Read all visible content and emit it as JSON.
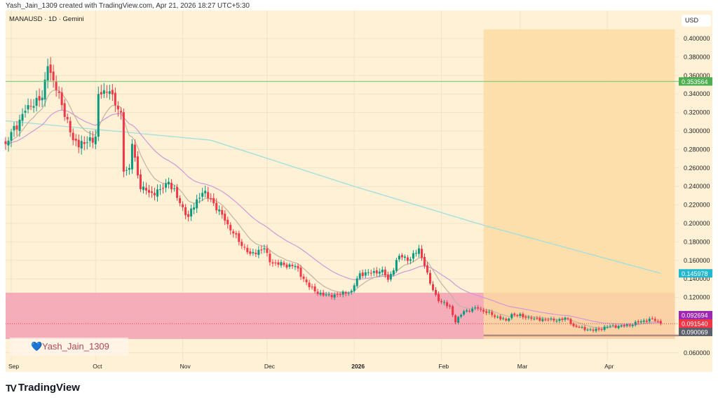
{
  "header": {
    "attribution": "Yash_Jain_1309 created with TradingView.com, Apr 21, 2026 18:27 UTC+5:30",
    "symbol": "MANAUSD · 1D · Gemini",
    "currency": "USD"
  },
  "watermark": {
    "text": "Yash_Jain_1309",
    "icon": "heart-icon"
  },
  "footer": {
    "brand": "TradingView",
    "icon": "tradingview-logo-icon"
  },
  "colors": {
    "background": "#fef1d6",
    "up": "#089981",
    "down": "#f23645",
    "orange_zone": "#fcdba0",
    "pink_zone": "#f4a9b8",
    "ma_long": "#9fdfe0",
    "ma_mid": "#cf98d8",
    "ma_short": "#c2b3a3",
    "hline": "#6cc46c"
  },
  "chart_data": {
    "type": "candlestick",
    "xlabel": "",
    "ylabel": "",
    "x_ticks": [
      "Sep",
      "Oct",
      "Nov",
      "Dec",
      "2026",
      "Feb",
      "Mar",
      "Apr"
    ],
    "x_tick_dates": [
      "2025-09-01",
      "2025-10-01",
      "2025-11-01",
      "2025-12-01",
      "2026-01-01",
      "2026-02-01",
      "2026-03-01",
      "2026-04-01"
    ],
    "y_ticks": [
      "0.400000",
      "0.380000",
      "0.360000",
      "0.340000",
      "0.320000",
      "0.300000",
      "0.280000",
      "0.260000",
      "0.240000",
      "0.220000",
      "0.200000",
      "0.180000",
      "0.160000",
      "0.140000",
      "0.120000",
      "0.060000"
    ],
    "ylim": [
      0.06,
      0.4
    ],
    "grid": true,
    "close_keypoints": [
      [
        "2025-08-30",
        0.286
      ],
      [
        "2025-09-07",
        0.328
      ],
      [
        "2025-09-12",
        0.336
      ],
      [
        "2025-09-14",
        0.37
      ],
      [
        "2025-09-19",
        0.328
      ],
      [
        "2025-09-23",
        0.29
      ],
      [
        "2025-09-27",
        0.286
      ],
      [
        "2025-10-01",
        0.294
      ],
      [
        "2025-10-02",
        0.34
      ],
      [
        "2025-10-06",
        0.343
      ],
      [
        "2025-10-08",
        0.328
      ],
      [
        "2025-10-10",
        0.32
      ],
      [
        "2025-10-11",
        0.256
      ],
      [
        "2025-10-13",
        0.26
      ],
      [
        "2025-10-14",
        0.286
      ],
      [
        "2025-10-17",
        0.237
      ],
      [
        "2025-10-21",
        0.233
      ],
      [
        "2025-10-24",
        0.237
      ],
      [
        "2025-10-27",
        0.245
      ],
      [
        "2025-10-31",
        0.222
      ],
      [
        "2025-11-03",
        0.207
      ],
      [
        "2025-11-06",
        0.226
      ],
      [
        "2025-11-08",
        0.233
      ],
      [
        "2025-11-11",
        0.226
      ],
      [
        "2025-11-16",
        0.203
      ],
      [
        "2025-11-21",
        0.18
      ],
      [
        "2025-11-25",
        0.167
      ],
      [
        "2025-11-30",
        0.173
      ],
      [
        "2025-12-02",
        0.158
      ],
      [
        "2025-12-07",
        0.155
      ],
      [
        "2025-12-11",
        0.154
      ],
      [
        "2025-12-16",
        0.131
      ],
      [
        "2025-12-21",
        0.122
      ],
      [
        "2025-12-26",
        0.123
      ],
      [
        "2025-12-31",
        0.127
      ],
      [
        "2026-01-03",
        0.146
      ],
      [
        "2026-01-07",
        0.146
      ],
      [
        "2026-01-11",
        0.15
      ],
      [
        "2026-01-13",
        0.139
      ],
      [
        "2026-01-17",
        0.165
      ],
      [
        "2026-01-21",
        0.161
      ],
      [
        "2026-01-24",
        0.173
      ],
      [
        "2026-01-26",
        0.154
      ],
      [
        "2026-01-28",
        0.135
      ],
      [
        "2026-01-31",
        0.116
      ],
      [
        "2026-02-04",
        0.11
      ],
      [
        "2026-02-06",
        0.093
      ],
      [
        "2026-02-09",
        0.105
      ],
      [
        "2026-02-14",
        0.108
      ],
      [
        "2026-02-19",
        0.101
      ],
      [
        "2026-02-24",
        0.095
      ],
      [
        "2026-02-26",
        0.102
      ],
      [
        "2026-03-06",
        0.097
      ],
      [
        "2026-03-13",
        0.095
      ],
      [
        "2026-03-18",
        0.097
      ],
      [
        "2026-03-20",
        0.089
      ],
      [
        "2026-03-27",
        0.084
      ],
      [
        "2026-04-02",
        0.089
      ],
      [
        "2026-04-07",
        0.089
      ],
      [
        "2026-04-12",
        0.093
      ],
      [
        "2026-04-17",
        0.097
      ],
      [
        "2026-04-20",
        0.09154
      ]
    ],
    "ma_long_keypoints": [
      [
        "2025-08-30",
        0.311
      ],
      [
        "2025-11-11",
        0.29
      ],
      [
        "2025-12-31",
        0.241
      ],
      [
        "2026-02-16",
        0.198
      ],
      [
        "2026-04-20",
        0.145978
      ]
    ],
    "horizontal_line": {
      "value": 0.353564,
      "label": "0.353564"
    },
    "zones": [
      {
        "name": "support-zone",
        "from_date": "2025-08-30",
        "to_date": "2026-04-25",
        "low": 0.075,
        "high": 0.125
      },
      {
        "name": "projection-zone",
        "from_date": "2026-02-16",
        "to_date": "2026-04-25",
        "low": 0.075,
        "high": 0.41
      }
    ],
    "range_floor": {
      "value": 0.0788,
      "from_date": "2026-02-16"
    },
    "price_labels": [
      {
        "name": "ma-long-label",
        "value": 0.145978,
        "label": "0.145978",
        "color": "#22b8cf"
      },
      {
        "name": "ma-mid-label",
        "value": 0.092694,
        "label": "0.092694",
        "color": "#9c27b0"
      },
      {
        "name": "last-price-label",
        "value": 0.09154,
        "label": "0.091540",
        "color": "#f23645"
      },
      {
        "name": "ma-short-label",
        "value": 0.090069,
        "label": "0.090069",
        "color": "#5d606b"
      }
    ]
  }
}
